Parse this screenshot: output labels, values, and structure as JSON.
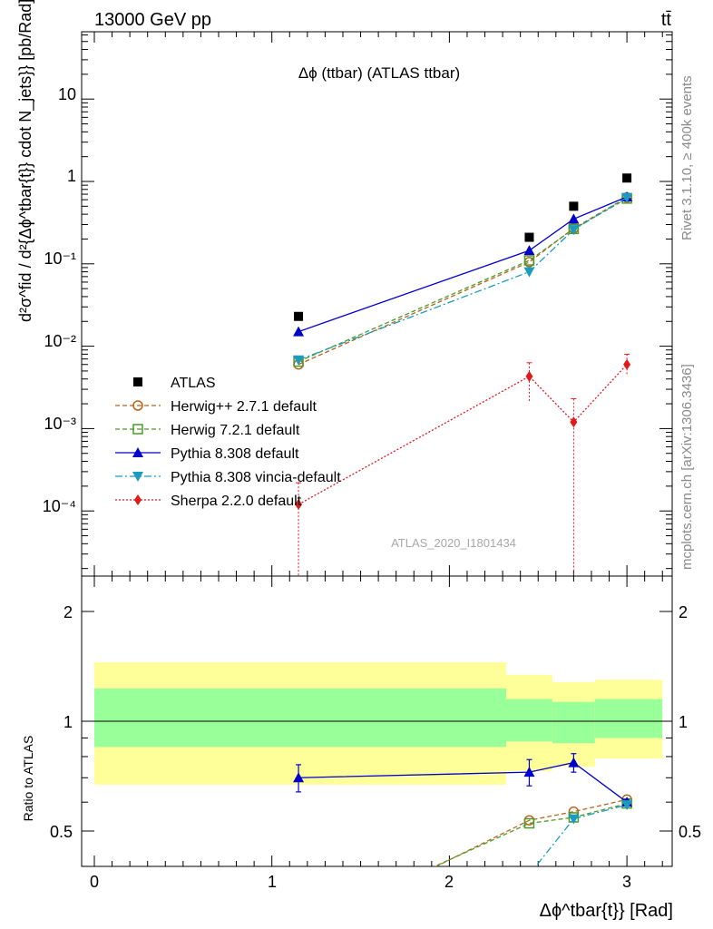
{
  "header": {
    "beam": "13000 GeV pp",
    "process": "tt̄",
    "plot_title": "Δϕ (ttbar) (ATLAS ttbar)",
    "side_rivet": "Rivet 3.1.10, ≥ 400k events",
    "side_url": "mcplots.cern.ch [arXiv:1306.3436]",
    "analysis_id": "ATLAS_2020_I1801434"
  },
  "axes": {
    "y_main_label": "d²σ^fid / d²{Δϕ^tbar{t}} cdot N_jets}} [pb/Rad]",
    "y_ratio_label": "Ratio to ATLAS",
    "x_label": "Δϕ^tbar{t}} [Rad]",
    "x_ticks": [
      "0",
      "1",
      "2",
      "3"
    ],
    "y_main_ticks": [
      "10⁻⁴",
      "10⁻³",
      "10⁻²",
      "10⁻¹",
      "1",
      "10"
    ],
    "y_ratio_ticks": [
      "0.5",
      "1",
      "2"
    ]
  },
  "legend": [
    {
      "label": "ATLAS",
      "color": "#000000",
      "marker": "square"
    },
    {
      "label": "Herwig++ 2.7.1 default",
      "color": "#b5651d",
      "marker": "open-circle"
    },
    {
      "label": "Herwig 7.2.1 default",
      "color": "#4c9a2a",
      "marker": "open-square"
    },
    {
      "label": "Pythia 8.308 default",
      "color": "#0000cc",
      "marker": "triangle-up"
    },
    {
      "label": "Pythia 8.308 vincia-default",
      "color": "#1a9bbf",
      "marker": "triangle-down"
    },
    {
      "label": "Sherpa 2.2.0 default",
      "color": "#e31a1c",
      "marker": "diamond"
    }
  ],
  "chart_data": {
    "type": "line",
    "x": [
      1.15,
      2.45,
      2.7,
      3.0
    ],
    "xlim": [
      -0.05,
      3.25
    ],
    "main": {
      "scale": "log",
      "ylim": [
        1.5e-05,
        50
      ],
      "series": [
        {
          "name": "ATLAS",
          "values": [
            0.023,
            0.21,
            0.5,
            1.1
          ]
        },
        {
          "name": "Herwig++ 2.7.1 default",
          "values": [
            0.006,
            0.105,
            0.27,
            0.64
          ]
        },
        {
          "name": "Herwig 7.2.1 default",
          "values": [
            0.0065,
            0.11,
            0.265,
            0.62
          ]
        },
        {
          "name": "Pythia 8.308 default",
          "values": [
            0.015,
            0.145,
            0.35,
            0.65
          ]
        },
        {
          "name": "Pythia 8.308 vincia-default",
          "values": [
            0.0068,
            0.08,
            0.26,
            0.64
          ]
        },
        {
          "name": "Sherpa 2.2.0 default",
          "values": [
            0.00012,
            0.0043,
            0.0012,
            0.006
          ],
          "err_low": [
            0.0001195,
            0.0022,
            0.001199,
            0.0015
          ],
          "err_high": [
            0.0001,
            0.002,
            0.0011,
            0.002
          ]
        }
      ]
    },
    "ratio": {
      "scale": "log",
      "ylim": [
        0.35,
        2.4
      ],
      "bands": [
        {
          "x_low": 0.0,
          "x_high": 2.32,
          "yellow": [
            0.67,
            1.45
          ],
          "green": [
            0.85,
            1.23
          ]
        },
        {
          "x_low": 2.32,
          "x_high": 2.58,
          "yellow": [
            0.73,
            1.34
          ],
          "green": [
            0.88,
            1.15
          ]
        },
        {
          "x_low": 2.58,
          "x_high": 2.82,
          "yellow": [
            0.75,
            1.28
          ],
          "green": [
            0.87,
            1.13
          ]
        },
        {
          "x_low": 2.82,
          "x_high": 3.2,
          "yellow": [
            0.79,
            1.3
          ],
          "green": [
            0.9,
            1.15
          ]
        }
      ],
      "series": [
        {
          "name": "Herwig++ 2.7.1 default",
          "values": [
            0.26,
            0.535,
            0.565,
            0.61
          ]
        },
        {
          "name": "Herwig 7.2.1 default",
          "values": [
            0.27,
            0.525,
            0.545,
            0.595
          ]
        },
        {
          "name": "Pythia 8.308 default",
          "values": [
            0.7,
            0.725,
            0.77,
            0.6
          ],
          "err": [
            0.06,
            0.06,
            0.045,
            0.01
          ]
        },
        {
          "name": "Pythia 8.308 vincia-default",
          "values": [
            0.3,
            0.38,
            0.54,
            0.59
          ]
        }
      ]
    }
  }
}
